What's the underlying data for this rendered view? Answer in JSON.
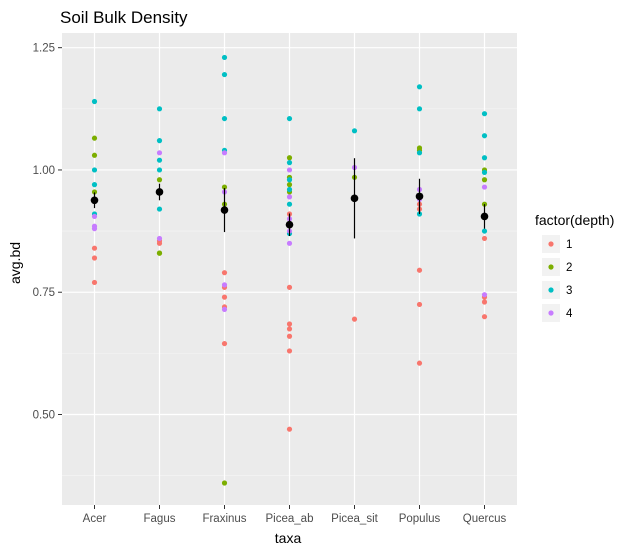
{
  "chart_data": {
    "type": "scatter",
    "title": "Soil Bulk Density",
    "xlabel": "taxa",
    "ylabel": "avg.bd",
    "categories": [
      "Acer",
      "Fagus",
      "Fraxinus",
      "Picea_ab",
      "Picea_sit",
      "Populus",
      "Quercus"
    ],
    "ylim": [
      0.315,
      1.28
    ],
    "yticks": [
      0.5,
      0.75,
      1.0,
      1.25
    ],
    "ytick_labels": [
      "0.50",
      "0.75",
      "1.00",
      "1.25"
    ],
    "grid": true,
    "legend": {
      "title": "factor(depth)",
      "position": "right",
      "items": [
        {
          "label": "1",
          "color": "#F8766D"
        },
        {
          "label": "2",
          "color": "#7CAE00"
        },
        {
          "label": "3",
          "color": "#00BFC4"
        },
        {
          "label": "4",
          "color": "#C77CFF"
        }
      ]
    },
    "series": [
      {
        "name": "1",
        "color": "#F8766D",
        "points": [
          [
            "Acer",
            0.84
          ],
          [
            "Acer",
            0.82
          ],
          [
            "Acer",
            0.77
          ],
          [
            "Fagus",
            0.855
          ],
          [
            "Fagus",
            0.85
          ],
          [
            "Fraxinus",
            0.79
          ],
          [
            "Fraxinus",
            0.76
          ],
          [
            "Fraxinus",
            0.74
          ],
          [
            "Fraxinus",
            0.72
          ],
          [
            "Fraxinus",
            0.645
          ],
          [
            "Picea_ab",
            0.76
          ],
          [
            "Picea_ab",
            0.685
          ],
          [
            "Picea_ab",
            0.675
          ],
          [
            "Picea_ab",
            0.66
          ],
          [
            "Picea_ab",
            0.63
          ],
          [
            "Picea_ab",
            0.47
          ],
          [
            "Picea_ab",
            0.91
          ],
          [
            "Picea_sit",
            0.695
          ],
          [
            "Populus",
            0.93
          ],
          [
            "Populus",
            0.92
          ],
          [
            "Populus",
            0.795
          ],
          [
            "Populus",
            0.725
          ],
          [
            "Populus",
            0.605
          ],
          [
            "Quercus",
            0.86
          ],
          [
            "Quercus",
            0.74
          ],
          [
            "Quercus",
            0.73
          ],
          [
            "Quercus",
            0.7
          ]
        ]
      },
      {
        "name": "2",
        "color": "#7CAE00",
        "points": [
          [
            "Acer",
            1.065
          ],
          [
            "Acer",
            1.03
          ],
          [
            "Acer",
            0.955
          ],
          [
            "Fagus",
            0.98
          ],
          [
            "Fagus",
            0.83
          ],
          [
            "Fagus",
            0.83
          ],
          [
            "Fraxinus",
            0.965
          ],
          [
            "Fraxinus",
            0.93
          ],
          [
            "Fraxinus",
            0.36
          ],
          [
            "Picea_ab",
            1.025
          ],
          [
            "Picea_ab",
            0.985
          ],
          [
            "Picea_ab",
            0.97
          ],
          [
            "Picea_ab",
            0.955
          ],
          [
            "Picea_sit",
            0.985
          ],
          [
            "Populus",
            1.045
          ],
          [
            "Populus",
            1.04
          ],
          [
            "Quercus",
            1.0
          ],
          [
            "Quercus",
            0.98
          ],
          [
            "Quercus",
            0.93
          ]
        ]
      },
      {
        "name": "3",
        "color": "#00BFC4",
        "points": [
          [
            "Acer",
            1.14
          ],
          [
            "Acer",
            1.0
          ],
          [
            "Acer",
            0.97
          ],
          [
            "Acer",
            0.91
          ],
          [
            "Fagus",
            1.125
          ],
          [
            "Fagus",
            1.06
          ],
          [
            "Fagus",
            1.02
          ],
          [
            "Fagus",
            1.0
          ],
          [
            "Fagus",
            0.92
          ],
          [
            "Fraxinus",
            1.23
          ],
          [
            "Fraxinus",
            1.195
          ],
          [
            "Fraxinus",
            1.105
          ],
          [
            "Fraxinus",
            1.04
          ],
          [
            "Picea_ab",
            1.105
          ],
          [
            "Picea_ab",
            1.015
          ],
          [
            "Picea_ab",
            0.98
          ],
          [
            "Picea_ab",
            0.96
          ],
          [
            "Picea_ab",
            0.93
          ],
          [
            "Picea_ab",
            0.87
          ],
          [
            "Picea_sit",
            1.08
          ],
          [
            "Populus",
            1.17
          ],
          [
            "Populus",
            1.125
          ],
          [
            "Populus",
            1.035
          ],
          [
            "Populus",
            0.91
          ],
          [
            "Quercus",
            1.115
          ],
          [
            "Quercus",
            1.07
          ],
          [
            "Quercus",
            1.025
          ],
          [
            "Quercus",
            0.995
          ],
          [
            "Quercus",
            0.875
          ]
        ]
      },
      {
        "name": "4",
        "color": "#C77CFF",
        "points": [
          [
            "Acer",
            0.905
          ],
          [
            "Acer",
            0.885
          ],
          [
            "Acer",
            0.88
          ],
          [
            "Fagus",
            1.035
          ],
          [
            "Fagus",
            0.86
          ],
          [
            "Fraxinus",
            1.035
          ],
          [
            "Fraxinus",
            0.955
          ],
          [
            "Fraxinus",
            0.765
          ],
          [
            "Fraxinus",
            0.715
          ],
          [
            "Picea_ab",
            1.0
          ],
          [
            "Picea_ab",
            0.945
          ],
          [
            "Picea_ab",
            0.9
          ],
          [
            "Picea_ab",
            0.875
          ],
          [
            "Picea_ab",
            0.85
          ],
          [
            "Picea_sit",
            1.005
          ],
          [
            "Populus",
            0.96
          ],
          [
            "Populus",
            0.94
          ],
          [
            "Quercus",
            0.965
          ],
          [
            "Quercus",
            0.905
          ],
          [
            "Quercus",
            0.745
          ]
        ]
      }
    ],
    "summary": {
      "color": "#000000",
      "points": [
        {
          "category": "Acer",
          "mean": 0.938,
          "lower": 0.922,
          "upper": 0.954
        },
        {
          "category": "Fagus",
          "mean": 0.955,
          "lower": 0.938,
          "upper": 0.972
        },
        {
          "category": "Fraxinus",
          "mean": 0.918,
          "lower": 0.873,
          "upper": 0.963
        },
        {
          "category": "Picea_ab",
          "mean": 0.888,
          "lower": 0.865,
          "upper": 0.911
        },
        {
          "category": "Picea_sit",
          "mean": 0.942,
          "lower": 0.86,
          "upper": 1.024
        },
        {
          "category": "Populus",
          "mean": 0.946,
          "lower": 0.91,
          "upper": 0.982
        },
        {
          "category": "Quercus",
          "mean": 0.905,
          "lower": 0.88,
          "upper": 0.93
        }
      ]
    }
  }
}
